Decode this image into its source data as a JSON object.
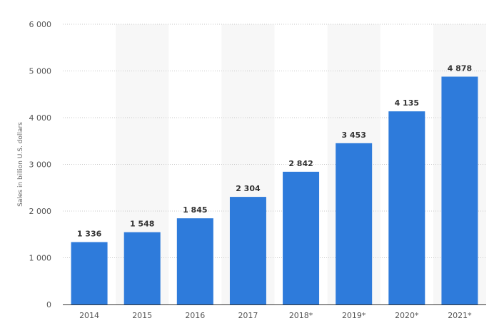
{
  "chart_data": {
    "type": "bar",
    "title": "",
    "xlabel": "",
    "ylabel": "Sales in billion U.S. dollars",
    "categories": [
      "2014",
      "2015",
      "2016",
      "2017",
      "2018*",
      "2019*",
      "2020*",
      "2021*"
    ],
    "values": [
      1336,
      1548,
      1845,
      2304,
      2842,
      3453,
      4135,
      4878
    ],
    "value_labels": [
      "1 336",
      "1 548",
      "1 845",
      "2 304",
      "2 842",
      "3 453",
      "4 135",
      "4 878"
    ],
    "ylim": [
      0,
      6000
    ],
    "yticks": [
      0,
      1000,
      2000,
      3000,
      4000,
      5000,
      6000
    ],
    "ytick_labels": [
      "0",
      "1 000",
      "2 000",
      "3 000",
      "4 000",
      "5 000",
      "6 000"
    ],
    "grid": true,
    "bar_color": "#2e7bdb",
    "band_color": "#f7f7f7"
  }
}
